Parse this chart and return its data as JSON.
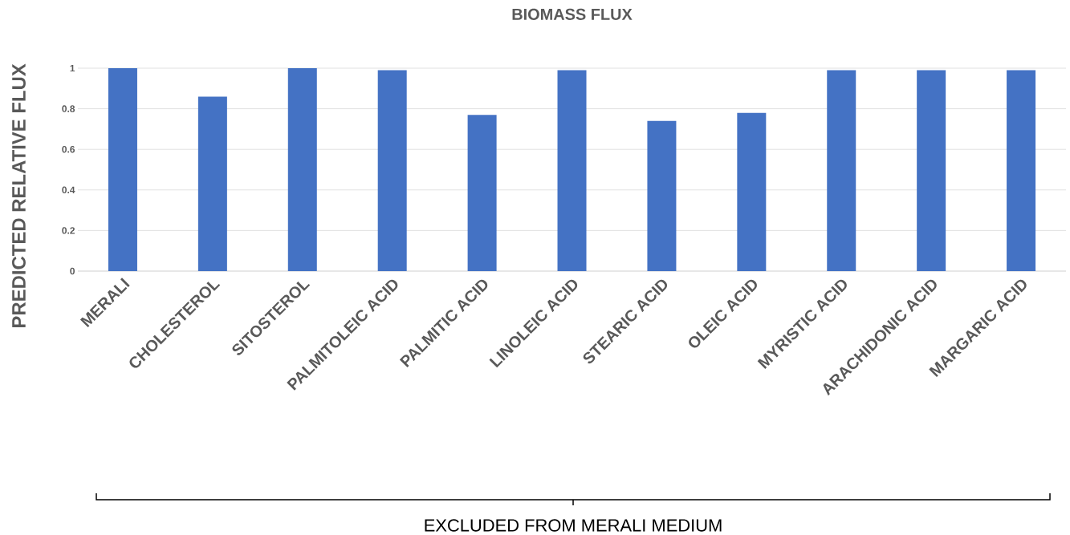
{
  "chart_data": {
    "type": "bar",
    "title": "BIOMASS FLUX",
    "annotations": [
      "EXCLUDED FROM MERALI MEDIUM"
    ],
    "ylabel": "PREDICTED RELATIVE FLUX",
    "categories": [
      "MERALI",
      "CHOLESTEROL",
      "SITOSTEROL",
      "PALMITOLEIC ACID",
      "PALMITIC ACID",
      "LINOLEIC ACID",
      "STEARIC ACID",
      "OLEIC ACID",
      "MYRISTIC ACID",
      "ARACHIDONIC ACID",
      "MARGARIC ACID"
    ],
    "values": [
      1.0,
      0.86,
      1.0,
      0.99,
      0.77,
      0.99,
      0.74,
      0.78,
      0.99,
      0.99,
      0.99
    ],
    "color": "#4472c4",
    "ylim": [
      0,
      1
    ],
    "yticks": [
      0,
      0.2,
      0.4,
      0.6,
      0.8,
      1
    ],
    "grid": "y"
  }
}
